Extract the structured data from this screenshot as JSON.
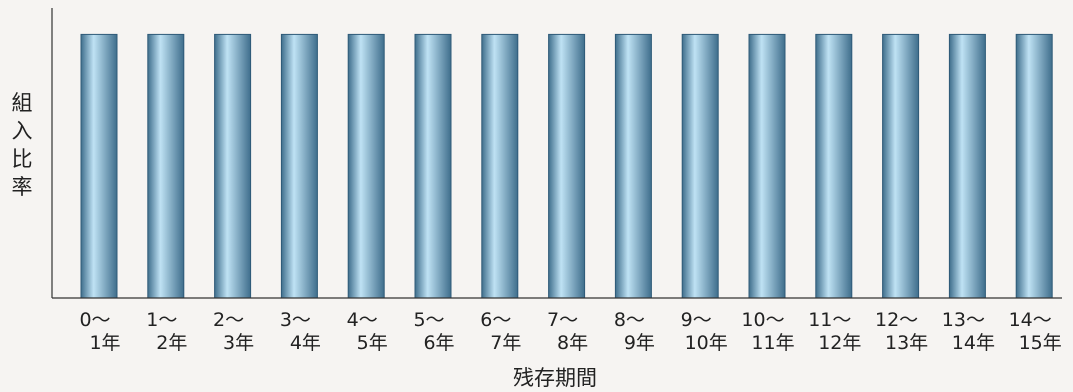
{
  "chart_data": {
    "type": "bar",
    "title": "",
    "xlabel": "残存期間",
    "ylabel": "組入比率",
    "categories": [
      [
        "0〜",
        "1年"
      ],
      [
        "1〜",
        "2年"
      ],
      [
        "2〜",
        "3年"
      ],
      [
        "3〜",
        "4年"
      ],
      [
        "4〜",
        "5年"
      ],
      [
        "5〜",
        "6年"
      ],
      [
        "6〜",
        "7年"
      ],
      [
        "7〜",
        "8年"
      ],
      [
        "8〜",
        "9年"
      ],
      [
        "9〜",
        "10年"
      ],
      [
        "10〜",
        "11年"
      ],
      [
        "11〜",
        "12年"
      ],
      [
        "12〜",
        "13年"
      ],
      [
        "13〜",
        "14年"
      ],
      [
        "14〜",
        "15年"
      ]
    ],
    "values": [
      1,
      1,
      1,
      1,
      1,
      1,
      1,
      1,
      1,
      1,
      1,
      1,
      1,
      1,
      1
    ],
    "ylim": [
      0,
      1.1
    ],
    "grid": false,
    "legend": "none",
    "colors": {
      "bar_dark": "#3f6e8c",
      "bar_light": "#bfe2f4",
      "bar_stroke": "#2f5a78",
      "axis": "#333333",
      "background": "#f6f4f2"
    }
  }
}
